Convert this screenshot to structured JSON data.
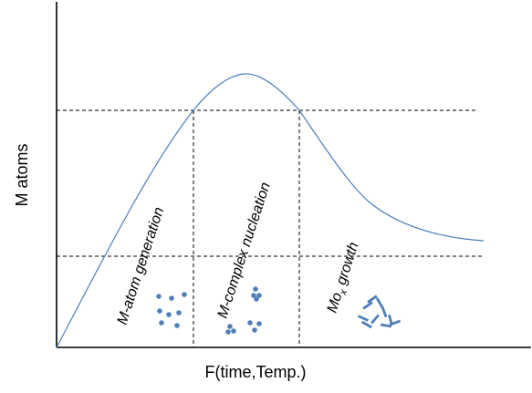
{
  "diagram": {
    "y_axis_label": "M atoms",
    "x_axis_label": "F(time,Temp.)",
    "regions": [
      {
        "label": "M-atom generation",
        "icon": "scattered-atoms"
      },
      {
        "label": "M-complex nucleation",
        "icon": "atom-clusters"
      },
      {
        "label_main": "Mo",
        "label_sub": "x",
        "label_rest": " growth",
        "icon": "crystal-rods"
      }
    ],
    "colors": {
      "curve": "#4a7ebb",
      "particles": "#4f7fb8",
      "axes": "#000000"
    }
  }
}
